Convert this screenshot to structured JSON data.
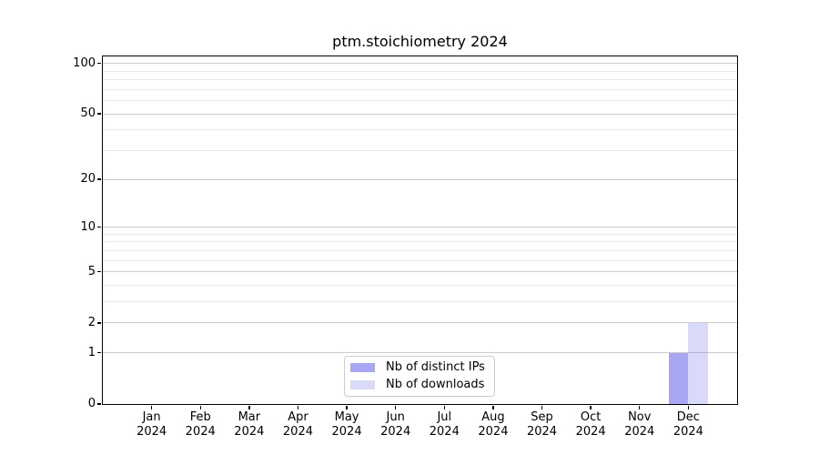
{
  "figure": {
    "title": "ptm.stoichiometry 2024"
  },
  "chart_data": {
    "type": "bar",
    "title": "ptm.stoichiometry 2024",
    "categories": [
      "Jan",
      "Feb",
      "Mar",
      "Apr",
      "May",
      "Jun",
      "Jul",
      "Aug",
      "Sep",
      "Oct",
      "Nov",
      "Dec"
    ],
    "x_tick_year": "2024",
    "series": [
      {
        "name": "Nb of distinct IPs",
        "slug": "distinct-ips",
        "color": "rgba(120,120,238,0.65)",
        "values": [
          0,
          0,
          0,
          0,
          0,
          0,
          0,
          0,
          0,
          0,
          0,
          1
        ]
      },
      {
        "name": "Nb of downloads",
        "slug": "downloads",
        "color": "rgba(120,120,238,0.28)",
        "values": [
          0,
          0,
          0,
          0,
          0,
          0,
          0,
          0,
          0,
          0,
          0,
          2
        ]
      }
    ],
    "xlabel": "",
    "ylabel": "",
    "yscale": "log1p",
    "ylim": [
      0,
      110
    ],
    "y_major_ticks": [
      0,
      1,
      2,
      5,
      10,
      20,
      50,
      100
    ],
    "y_minor_ticks": [
      3,
      4,
      6,
      7,
      8,
      9,
      30,
      40,
      60,
      70,
      80,
      90
    ],
    "grid": "horizontal",
    "legend_position": "lower center"
  },
  "colors": {
    "spine": "#000000",
    "grid_major": "#cccccc",
    "grid_minor": "#e9e9e9",
    "legend_border": "#cccccc",
    "bar_base": "#7878ee"
  }
}
